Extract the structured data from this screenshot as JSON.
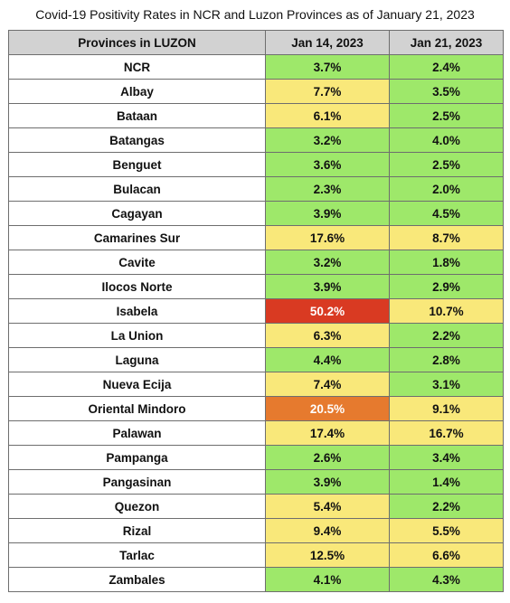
{
  "title": "Covid-19 Positivity Rates in NCR and Luzon Provinces as of January 21, 2023",
  "headers": [
    "Provinces in LUZON",
    "Jan 14, 2023",
    "Jan 21, 2023"
  ],
  "colors": {
    "green": "#9ee86a",
    "yellow": "#f9e87a",
    "red": "#d93a22",
    "orange": "#e67a2e",
    "header": "#d2d2d2"
  },
  "chart_data": {
    "type": "table",
    "title": "Covid-19 Positivity Rates in NCR and Luzon Provinces as of January 21, 2023",
    "columns": [
      "Provinces in LUZON",
      "Jan 14, 2023",
      "Jan 21, 2023"
    ],
    "rows": [
      {
        "province": "NCR",
        "jan14": "3.7%",
        "jan14_color": "green",
        "jan21": "2.4%",
        "jan21_color": "green"
      },
      {
        "province": "Albay",
        "jan14": "7.7%",
        "jan14_color": "yellow",
        "jan21": "3.5%",
        "jan21_color": "green"
      },
      {
        "province": "Bataan",
        "jan14": "6.1%",
        "jan14_color": "yellow",
        "jan21": "2.5%",
        "jan21_color": "green"
      },
      {
        "province": "Batangas",
        "jan14": "3.2%",
        "jan14_color": "green",
        "jan21": "4.0%",
        "jan21_color": "green"
      },
      {
        "province": "Benguet",
        "jan14": "3.6%",
        "jan14_color": "green",
        "jan21": "2.5%",
        "jan21_color": "green"
      },
      {
        "province": "Bulacan",
        "jan14": "2.3%",
        "jan14_color": "green",
        "jan21": "2.0%",
        "jan21_color": "green"
      },
      {
        "province": "Cagayan",
        "jan14": "3.9%",
        "jan14_color": "green",
        "jan21": "4.5%",
        "jan21_color": "green"
      },
      {
        "province": "Camarines Sur",
        "jan14": "17.6%",
        "jan14_color": "yellow",
        "jan21": "8.7%",
        "jan21_color": "yellow"
      },
      {
        "province": "Cavite",
        "jan14": "3.2%",
        "jan14_color": "green",
        "jan21": "1.8%",
        "jan21_color": "green"
      },
      {
        "province": "Ilocos Norte",
        "jan14": "3.9%",
        "jan14_color": "green",
        "jan21": "2.9%",
        "jan21_color": "green"
      },
      {
        "province": "Isabela",
        "jan14": "50.2%",
        "jan14_color": "red",
        "jan21": "10.7%",
        "jan21_color": "yellow"
      },
      {
        "province": "La Union",
        "jan14": "6.3%",
        "jan14_color": "yellow",
        "jan21": "2.2%",
        "jan21_color": "green"
      },
      {
        "province": "Laguna",
        "jan14": "4.4%",
        "jan14_color": "green",
        "jan21": "2.8%",
        "jan21_color": "green"
      },
      {
        "province": "Nueva Ecija",
        "jan14": "7.4%",
        "jan14_color": "yellow",
        "jan21": "3.1%",
        "jan21_color": "green"
      },
      {
        "province": "Oriental Mindoro",
        "jan14": "20.5%",
        "jan14_color": "orange",
        "jan21": "9.1%",
        "jan21_color": "yellow"
      },
      {
        "province": "Palawan",
        "jan14": "17.4%",
        "jan14_color": "yellow",
        "jan21": "16.7%",
        "jan21_color": "yellow"
      },
      {
        "province": "Pampanga",
        "jan14": "2.6%",
        "jan14_color": "green",
        "jan21": "3.4%",
        "jan21_color": "green"
      },
      {
        "province": "Pangasinan",
        "jan14": "3.9%",
        "jan14_color": "green",
        "jan21": "1.4%",
        "jan21_color": "green"
      },
      {
        "province": "Quezon",
        "jan14": "5.4%",
        "jan14_color": "yellow",
        "jan21": "2.2%",
        "jan21_color": "green"
      },
      {
        "province": "Rizal",
        "jan14": "9.4%",
        "jan14_color": "yellow",
        "jan21": "5.5%",
        "jan21_color": "yellow"
      },
      {
        "province": "Tarlac",
        "jan14": "12.5%",
        "jan14_color": "yellow",
        "jan21": "6.6%",
        "jan21_color": "yellow"
      },
      {
        "province": "Zambales",
        "jan14": "4.1%",
        "jan14_color": "green",
        "jan21": "4.3%",
        "jan21_color": "green"
      }
    ]
  }
}
